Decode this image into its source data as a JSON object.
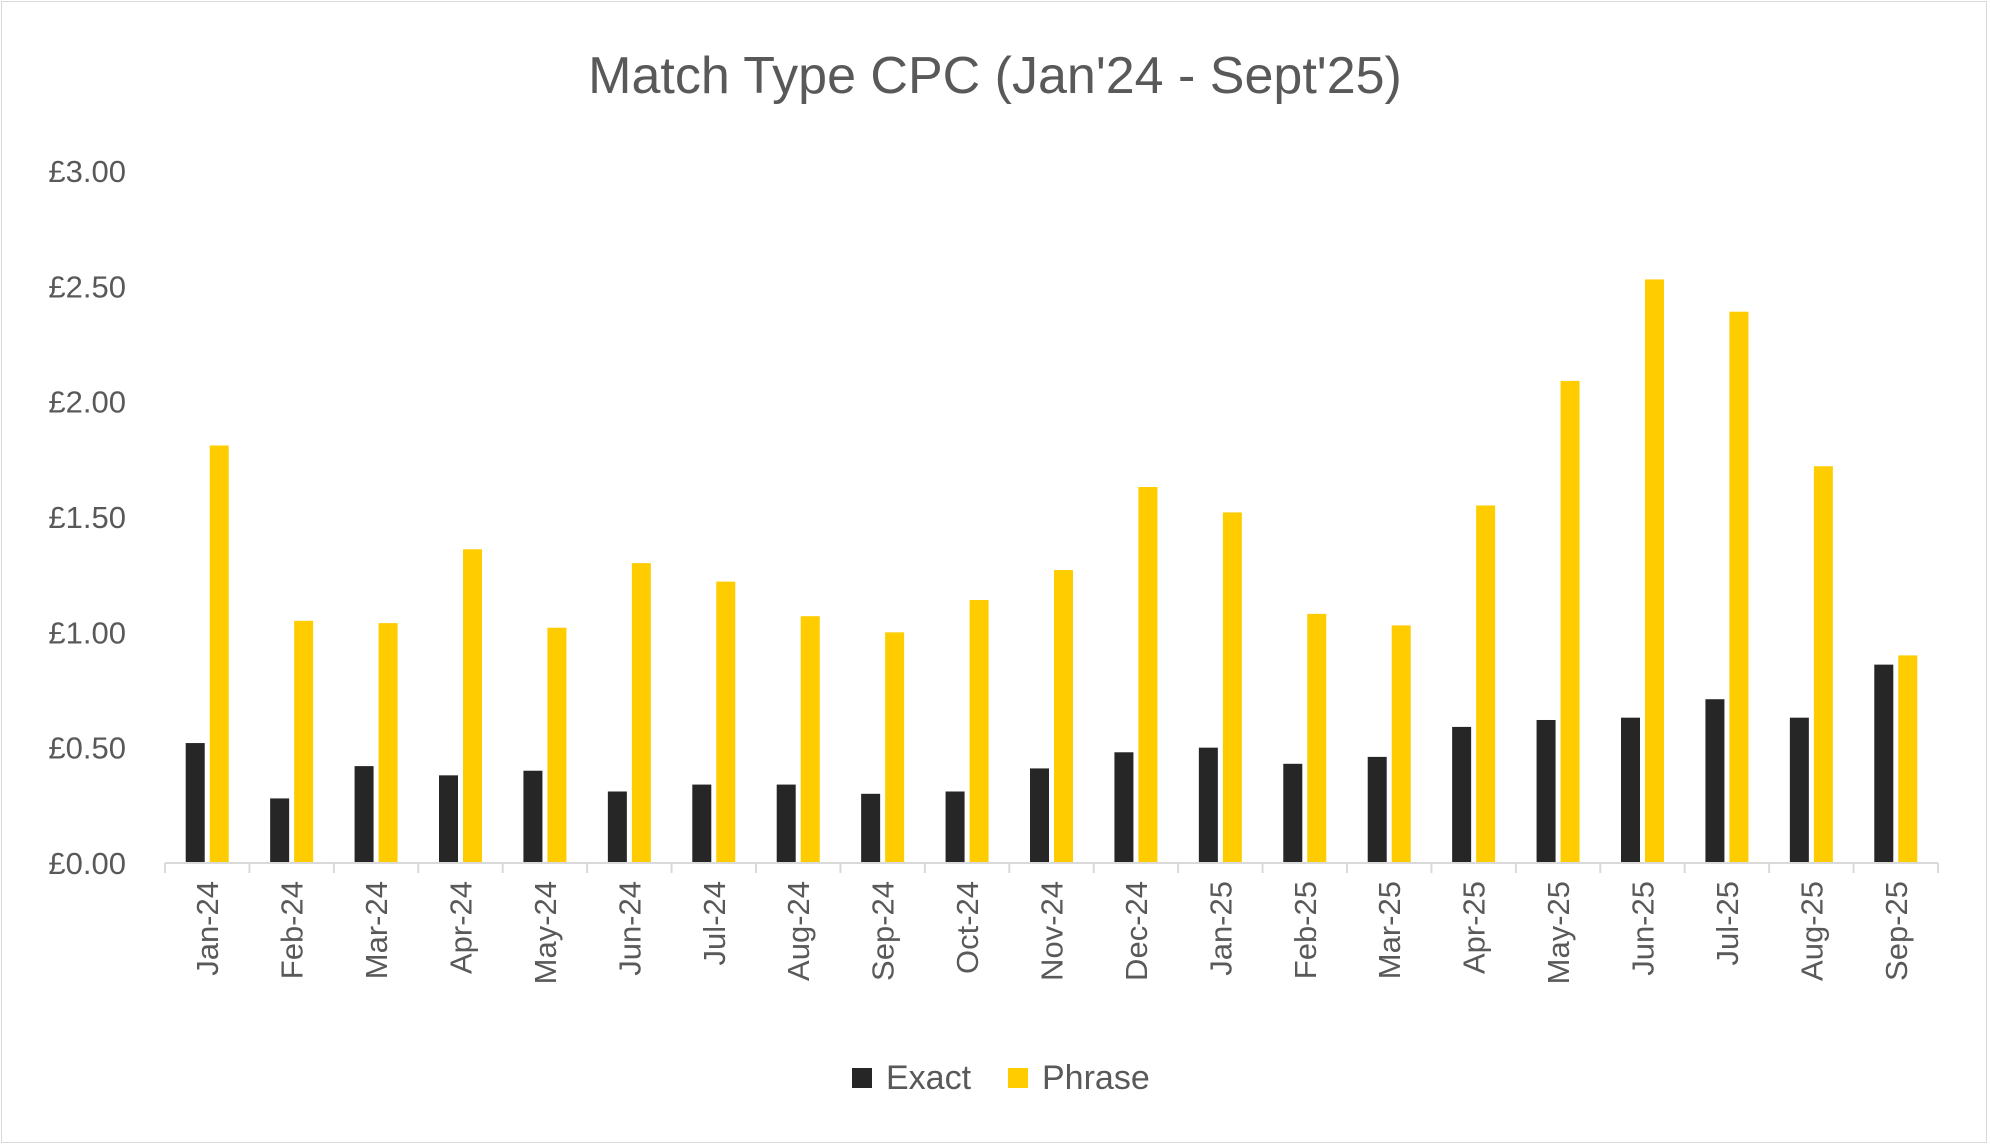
{
  "chart_data": {
    "type": "bar",
    "title": "Match Type CPC (Jan'24 - Sept'25)",
    "xlabel": "",
    "ylabel": "",
    "ylim": [
      0,
      3
    ],
    "y_ticks": [
      "£0.00",
      "£0.50",
      "£1.00",
      "£1.50",
      "£2.00",
      "£2.50",
      "£3.00"
    ],
    "y_tick_values": [
      0,
      0.5,
      1,
      1.5,
      2,
      2.5,
      3
    ],
    "grid": false,
    "legend_position": "bottom",
    "categories": [
      "Jan-24",
      "Feb-24",
      "Mar-24",
      "Apr-24",
      "May-24",
      "Jun-24",
      "Jul-24",
      "Aug-24",
      "Sep-24",
      "Oct-24",
      "Nov-24",
      "Dec-24",
      "Jan-25",
      "Feb-25",
      "Mar-25",
      "Apr-25",
      "May-25",
      "Jun-25",
      "Jul-25",
      "Aug-25",
      "Sep-25"
    ],
    "series": [
      {
        "name": "Exact",
        "color": "#262626",
        "values": [
          0.52,
          0.28,
          0.42,
          0.38,
          0.4,
          0.31,
          0.34,
          0.34,
          0.3,
          0.31,
          0.41,
          0.48,
          0.5,
          0.43,
          0.46,
          0.59,
          0.62,
          0.63,
          0.71,
          0.63,
          0.86
        ]
      },
      {
        "name": "Phrase",
        "color": "#ffcc00",
        "values": [
          1.81,
          1.05,
          1.04,
          1.36,
          1.02,
          1.3,
          1.22,
          1.07,
          1.0,
          1.14,
          1.27,
          1.63,
          1.52,
          1.08,
          1.03,
          1.55,
          2.09,
          2.53,
          2.39,
          1.72,
          0.9
        ]
      }
    ]
  }
}
